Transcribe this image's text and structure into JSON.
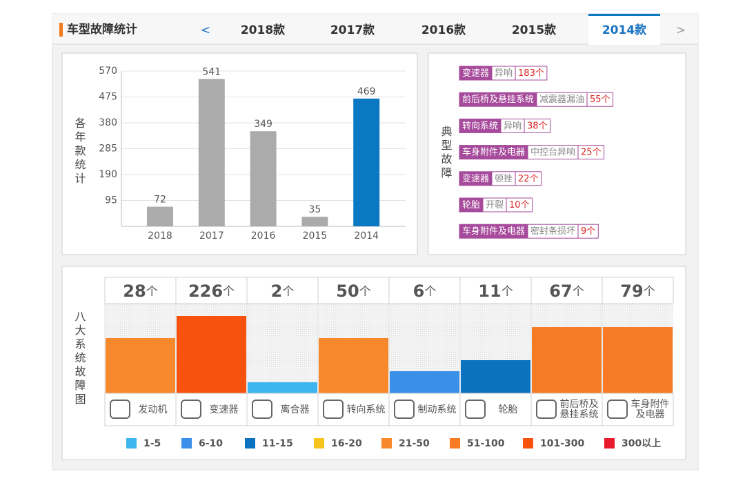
{
  "header": {
    "title": "车型故障统计",
    "tabs": [
      "<",
      "2018款",
      "2017款",
      "2016款",
      "2015款",
      "2014款",
      ">"
    ],
    "active_tab": 5
  },
  "chart_data": {
    "type": "bar",
    "ylabel": "各年款统计",
    "categories": [
      "2018",
      "2017",
      "2016",
      "2015",
      "2014"
    ],
    "values": [
      72,
      541,
      349,
      35,
      469
    ],
    "colors": [
      "#ababab",
      "#ababab",
      "#ababab",
      "#ababab",
      "#0a78c2"
    ],
    "ylim": [
      0,
      570
    ],
    "yticks": [
      95,
      190,
      285,
      380,
      475,
      570
    ],
    "grid": true
  },
  "typical_faults": {
    "label": "典型故障",
    "items": [
      {
        "part": "变速器",
        "fault": "异响",
        "count": "183个"
      },
      {
        "part": "前后桥及悬挂系统",
        "fault": "减震器漏油",
        "count": "55个"
      },
      {
        "part": "转向系统",
        "fault": "异响",
        "count": "38个"
      },
      {
        "part": "车身附件及电器",
        "fault": "中控台异响",
        "count": "25个"
      },
      {
        "part": "变速器",
        "fault": "顿挫",
        "count": "22个"
      },
      {
        "part": "轮胎",
        "fault": "开裂",
        "count": "10个"
      },
      {
        "part": "车身附件及电器",
        "fault": "密封条损坏",
        "count": "9个"
      }
    ]
  },
  "systems": {
    "label": "八大系统故障图",
    "unit": "个",
    "items": [
      {
        "name": "发动机",
        "count": 28
      },
      {
        "name": "变速器",
        "count": 226
      },
      {
        "name": "离合器",
        "count": 2
      },
      {
        "name": "转向系统",
        "count": 50
      },
      {
        "name": "制动系统",
        "count": 6
      },
      {
        "name": "轮胎",
        "count": 11
      },
      {
        "name": "前后桥及悬挂系统",
        "count": 67
      },
      {
        "name": "车身附件及电器",
        "count": 79
      }
    ],
    "legend": [
      {
        "label": "1-5",
        "color": "#3db5ef",
        "range": [
          1,
          5
        ]
      },
      {
        "label": "6-10",
        "color": "#3a8fe8",
        "range": [
          6,
          10
        ]
      },
      {
        "label": "11-15",
        "color": "#0b72c0",
        "range": [
          11,
          15
        ]
      },
      {
        "label": "16-20",
        "color": "#f6c41d",
        "range": [
          16,
          20
        ]
      },
      {
        "label": "21-50",
        "color": "#f7882b",
        "range": [
          21,
          50
        ]
      },
      {
        "label": "51-100",
        "color": "#f77a24",
        "range": [
          51,
          100
        ]
      },
      {
        "label": "101-300",
        "color": "#f8520f",
        "range": [
          101,
          300
        ]
      },
      {
        "label": "300以上",
        "color": "#e81a2b",
        "range": [
          300
        ]
      }
    ]
  }
}
